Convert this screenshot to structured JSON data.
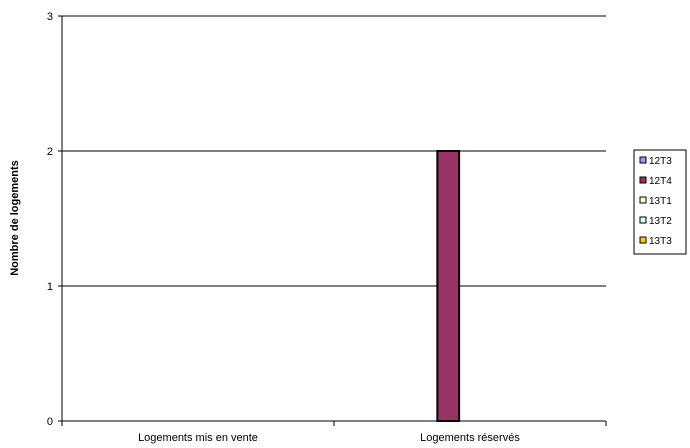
{
  "chart_data": {
    "type": "bar",
    "title": "",
    "xlabel": "",
    "ylabel": "Nombre de logements",
    "ylim": [
      0,
      3
    ],
    "yticks": [
      0,
      1,
      2,
      3
    ],
    "grid": true,
    "legend_position": "right",
    "categories": [
      "Logements mis en vente",
      "Logements réservés"
    ],
    "series": [
      {
        "name": "12T3",
        "color": "#9999ff",
        "values": [
          0,
          0
        ]
      },
      {
        "name": "12T4",
        "color": "#993366",
        "values": [
          0,
          2
        ]
      },
      {
        "name": "13T1",
        "color": "#ffffcc",
        "values": [
          0,
          0
        ]
      },
      {
        "name": "13T2",
        "color": "#ccffff",
        "values": [
          0,
          0
        ]
      },
      {
        "name": "13T3",
        "color": "#ffcc00",
        "values": [
          0,
          0
        ]
      }
    ]
  }
}
